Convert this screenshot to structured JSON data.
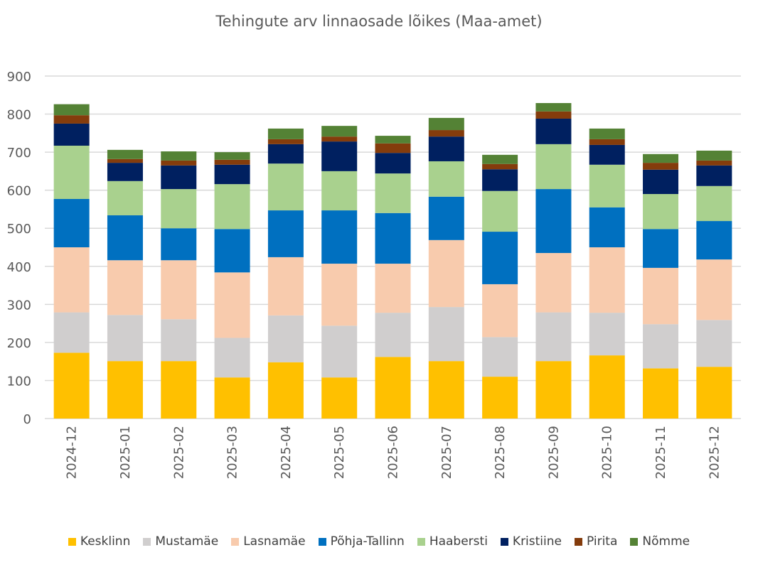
{
  "chart_data": {
    "type": "bar",
    "stacked": true,
    "title": "Tehingute arv linnaosade lõikes (Maa-amet)",
    "xlabel": "",
    "ylabel": "",
    "ylim": [
      0,
      900
    ],
    "yticks": [
      0,
      100,
      200,
      300,
      400,
      500,
      600,
      700,
      800,
      900
    ],
    "grid": true,
    "legend_position": "bottom",
    "categories": [
      "2024-12",
      "2025-01",
      "2025-02",
      "2025-03",
      "2025-04",
      "2025-05",
      "2025-06",
      "2025-07",
      "2025-08",
      "2025-09",
      "2025-10",
      "2025-11",
      "2025-12"
    ],
    "series": [
      {
        "name": "Kesklinn",
        "color": "#FFC000",
        "values": [
          173,
          151,
          151,
          108,
          148,
          108,
          162,
          151,
          110,
          151,
          166,
          132,
          136
        ]
      },
      {
        "name": "Mustamäe",
        "color": "#D0CECE",
        "values": [
          106,
          121,
          110,
          104,
          123,
          136,
          116,
          142,
          104,
          128,
          112,
          116,
          123
        ]
      },
      {
        "name": "Lasnamäe",
        "color": "#F8CBAD",
        "values": [
          171,
          144,
          155,
          172,
          153,
          163,
          129,
          176,
          139,
          156,
          172,
          148,
          159
        ]
      },
      {
        "name": "Põhja-Tallinn",
        "color": "#0070C0",
        "values": [
          127,
          118,
          84,
          114,
          123,
          140,
          133,
          114,
          138,
          168,
          105,
          102,
          101
        ]
      },
      {
        "name": "Haabersti",
        "color": "#A9D18E",
        "values": [
          140,
          90,
          103,
          118,
          123,
          103,
          104,
          93,
          107,
          118,
          112,
          92,
          92
        ]
      },
      {
        "name": "Kristiine",
        "color": "#002060",
        "values": [
          58,
          48,
          62,
          51,
          51,
          78,
          54,
          65,
          57,
          67,
          52,
          64,
          54
        ]
      },
      {
        "name": "Pirita",
        "color": "#843C0C",
        "values": [
          22,
          10,
          13,
          13,
          13,
          13,
          25,
          17,
          14,
          19,
          15,
          18,
          13
        ]
      },
      {
        "name": "Nõmme",
        "color": "#548235",
        "values": [
          29,
          24,
          24,
          20,
          28,
          28,
          20,
          32,
          24,
          22,
          28,
          23,
          26
        ]
      }
    ]
  }
}
